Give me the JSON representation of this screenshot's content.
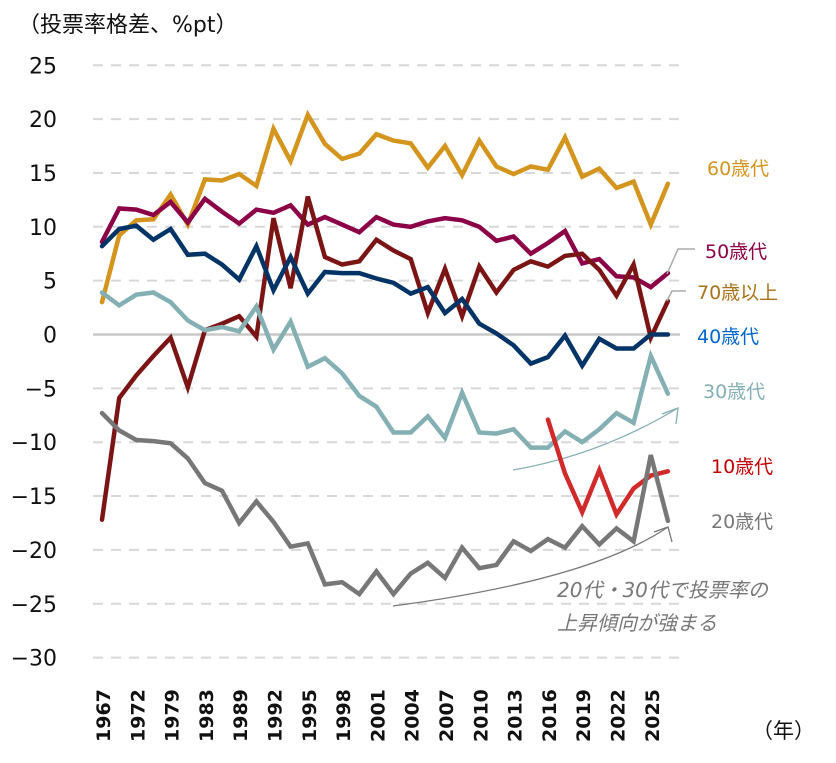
{
  "chart_data": {
    "type": "line",
    "ylabel": "（投票率格差、%pt）",
    "xlabel": "（年）",
    "ylim": [
      -30,
      25
    ],
    "yticks": [
      25,
      20,
      15,
      10,
      5,
      0,
      -5,
      -10,
      -15,
      -20,
      -25,
      -30
    ],
    "x_tick_labels": [
      "1967",
      "1972",
      "1979",
      "1983",
      "1989",
      "1992",
      "1995",
      "1998",
      "2001",
      "2004",
      "2007",
      "2010",
      "2013",
      "2016",
      "2019",
      "2022",
      "2025"
    ],
    "grid": "horizontal dashed",
    "series": [
      {
        "name": "60歳代",
        "color": "#D4951F",
        "label_color": "#D4951F",
        "values": [
          3.0,
          9.2,
          10.6,
          10.7,
          13.0,
          10.2,
          14.4,
          14.3,
          14.9,
          13.8,
          19.1,
          16.1,
          20.4,
          17.7,
          16.3,
          16.8,
          18.6,
          18.0,
          17.75,
          15.5,
          17.5,
          14.8,
          18.0,
          15.6,
          14.9,
          15.6,
          15.3,
          18.3,
          14.65,
          15.4,
          13.6,
          14.2,
          10.2,
          14.0
        ]
      },
      {
        "name": "50歳代",
        "color": "#8B0046",
        "label_color": "#8B0046",
        "values": [
          8.6,
          11.7,
          11.6,
          11.1,
          12.3,
          10.4,
          12.6,
          11.4,
          10.3,
          11.6,
          11.3,
          12.0,
          10.2,
          10.9,
          10.2,
          9.5,
          10.9,
          10.2,
          10.0,
          10.5,
          10.8,
          10.6,
          10.0,
          8.7,
          9.1,
          7.5,
          8.5,
          9.6,
          6.6,
          7.0,
          5.4,
          5.3,
          4.4,
          5.7
        ]
      },
      {
        "name": "70歳以上",
        "color": "#7B1515",
        "label_color": "#A8731A",
        "values": [
          -17.2,
          -5.9,
          -3.8,
          -2.0,
          -0.3,
          -4.9,
          0.4,
          1.0,
          1.7,
          -0.2,
          10.8,
          4.3,
          12.8,
          7.2,
          6.5,
          6.8,
          8.8,
          7.8,
          7.0,
          2.0,
          6.1,
          1.7,
          6.3,
          3.9,
          6.0,
          6.8,
          6.3,
          7.3,
          7.5,
          6.0,
          3.6,
          6.5,
          -0.3,
          3.1
        ]
      },
      {
        "name": "40歳代",
        "color": "#003366",
        "label_color": "#0066CC",
        "values": [
          8.2,
          9.8,
          10.1,
          8.8,
          9.8,
          7.4,
          7.5,
          6.5,
          5.1,
          8.2,
          4.1,
          7.2,
          3.8,
          5.8,
          5.7,
          5.7,
          5.2,
          4.8,
          3.8,
          4.4,
          2.0,
          3.3,
          1.0,
          0.1,
          -1.0,
          -2.7,
          -2.1,
          -0.1,
          -2.9,
          -0.4,
          -1.3,
          -1.3,
          0.0,
          0.0
        ]
      },
      {
        "name": "30歳代",
        "color": "#84AFB3",
        "label_color": "#84AFB3",
        "values": [
          3.9,
          2.7,
          3.7,
          3.9,
          3.0,
          1.3,
          0.4,
          0.7,
          0.3,
          2.6,
          -1.4,
          1.2,
          -3.0,
          -2.2,
          -3.6,
          -5.7,
          -6.7,
          -9.1,
          -9.1,
          -7.6,
          -9.6,
          -5.4,
          -9.1,
          -9.2,
          -8.8,
          -10.5,
          -10.5,
          -9.0,
          -10.0,
          -8.8,
          -7.3,
          -8.2,
          -2.0,
          -5.5
        ]
      },
      {
        "name": "10歳代",
        "color": "#D02A2A",
        "label_color": "#C00000",
        "values": [
          null,
          null,
          null,
          null,
          null,
          null,
          null,
          null,
          null,
          null,
          null,
          null,
          null,
          null,
          null,
          null,
          null,
          null,
          null,
          null,
          null,
          null,
          null,
          null,
          null,
          null,
          -7.9,
          -12.9,
          -16.5,
          -12.6,
          -16.7,
          -14.3,
          -13.1,
          -12.7
        ]
      },
      {
        "name": "20歳代",
        "color": "#777777",
        "label_color": "#777777",
        "values": [
          -7.3,
          -8.9,
          -9.8,
          -9.9,
          -10.1,
          -11.5,
          -13.8,
          -14.5,
          -17.5,
          -15.5,
          -17.4,
          -19.7,
          -19.4,
          -23.2,
          -23.0,
          -24.1,
          -22.0,
          -24.1,
          -22.2,
          -21.2,
          -22.6,
          -19.8,
          -21.7,
          -21.4,
          -19.2,
          -20.1,
          -19.0,
          -19.8,
          -17.8,
          -19.5,
          -18.0,
          -19.2,
          -11.2,
          -17.3
        ]
      }
    ],
    "annotation": {
      "line1": "20代・30代で投票率の",
      "line2": "上昇傾向が強まる"
    }
  }
}
